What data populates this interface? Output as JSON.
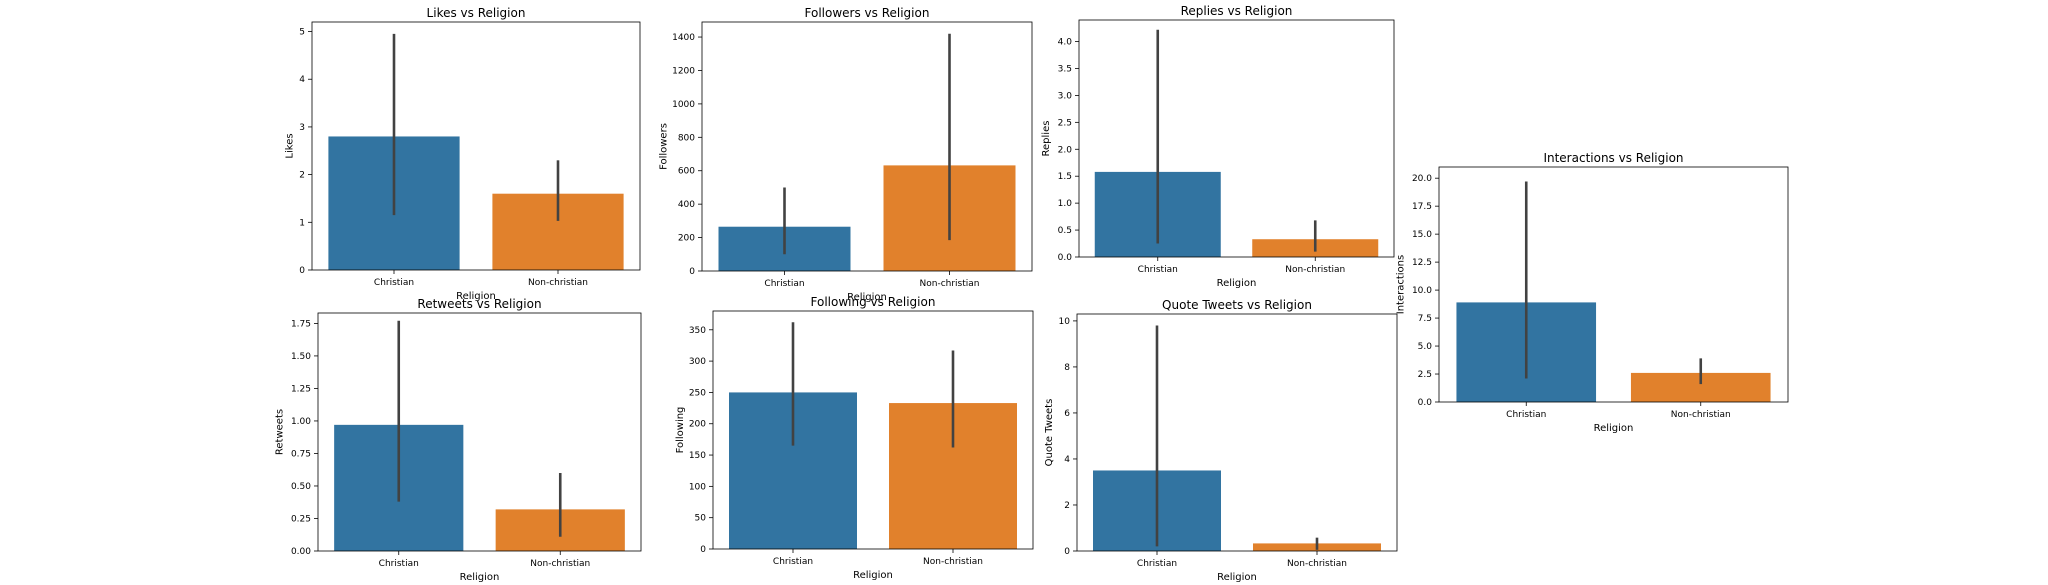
{
  "chart_data": [
    {
      "type": "bar",
      "title": "Likes vs Religion",
      "xlabel": "Religion",
      "ylabel": "Likes",
      "categories": [
        "Christian",
        "Non-christian"
      ],
      "values": [
        2.8,
        1.6
      ],
      "error_low": [
        1.15,
        1.03
      ],
      "error_high": [
        4.95,
        2.3
      ],
      "ylim": [
        0,
        5.2
      ],
      "yticks": [
        0,
        1,
        2,
        3,
        4,
        5
      ],
      "ytick_labels": [
        "0",
        "1",
        "2",
        "3",
        "4",
        "5"
      ],
      "colors": [
        "#3274a1",
        "#e1812c"
      ],
      "grid": false
    },
    {
      "type": "bar",
      "title": "Followers vs Religion",
      "xlabel": "Religion",
      "ylabel": "Followers",
      "categories": [
        "Christian",
        "Non-christian"
      ],
      "values": [
        265,
        632
      ],
      "error_low": [
        100,
        185
      ],
      "error_high": [
        500,
        1420
      ],
      "ylim": [
        0,
        1490
      ],
      "yticks": [
        0,
        200,
        400,
        600,
        800,
        1000,
        1200,
        1400
      ],
      "ytick_labels": [
        "0",
        "200",
        "400",
        "600",
        "800",
        "1000",
        "1200",
        "1400"
      ],
      "colors": [
        "#3274a1",
        "#e1812c"
      ],
      "grid": false
    },
    {
      "type": "bar",
      "title": "Replies vs Religion",
      "xlabel": "Religion",
      "ylabel": "Replies",
      "categories": [
        "Christian",
        "Non-christian"
      ],
      "values": [
        1.58,
        0.33
      ],
      "error_low": [
        0.25,
        0.1
      ],
      "error_high": [
        4.22,
        0.68
      ],
      "ylim": [
        0,
        4.4
      ],
      "yticks": [
        0,
        0.5,
        1,
        1.5,
        2,
        2.5,
        3,
        3.5,
        4
      ],
      "ytick_labels": [
        "0.0",
        "0.5",
        "1.0",
        "1.5",
        "2.0",
        "2.5",
        "3.0",
        "3.5",
        "4.0"
      ],
      "colors": [
        "#3274a1",
        "#e1812c"
      ],
      "grid": false
    },
    {
      "type": "bar",
      "title": "Interactions vs Religion",
      "xlabel": "Religion",
      "ylabel": "Interactions",
      "categories": [
        "Christian",
        "Non-christian"
      ],
      "values": [
        8.9,
        2.6
      ],
      "error_low": [
        2.1,
        1.6
      ],
      "error_high": [
        19.7,
        3.9
      ],
      "ylim": [
        0,
        21
      ],
      "yticks": [
        0,
        2.5,
        5,
        7.5,
        10,
        12.5,
        15,
        17.5,
        20
      ],
      "ytick_labels": [
        "0.0",
        "2.5",
        "5.0",
        "7.5",
        "10.0",
        "12.5",
        "15.0",
        "17.5",
        "20.0"
      ],
      "colors": [
        "#3274a1",
        "#e1812c"
      ],
      "grid": false
    },
    {
      "type": "bar",
      "title": "Retweets vs Religion",
      "xlabel": "Religion",
      "ylabel": "Retweets",
      "categories": [
        "Christian",
        "Non-christian"
      ],
      "values": [
        0.97,
        0.32
      ],
      "error_low": [
        0.38,
        0.11
      ],
      "error_high": [
        1.77,
        0.6
      ],
      "ylim": [
        0,
        1.83
      ],
      "yticks": [
        0,
        0.25,
        0.5,
        0.75,
        1,
        1.25,
        1.5,
        1.75
      ],
      "ytick_labels": [
        "0.00",
        "0.25",
        "0.50",
        "0.75",
        "1.00",
        "1.25",
        "1.50",
        "1.75"
      ],
      "colors": [
        "#3274a1",
        "#e1812c"
      ],
      "grid": false
    },
    {
      "type": "bar",
      "title": "Following vs Religion",
      "xlabel": "Religion",
      "ylabel": "Following",
      "categories": [
        "Christian",
        "Non-christian"
      ],
      "values": [
        250,
        233
      ],
      "error_low": [
        165,
        162
      ],
      "error_high": [
        362,
        317
      ],
      "ylim": [
        0,
        380
      ],
      "yticks": [
        0,
        50,
        100,
        150,
        200,
        250,
        300,
        350
      ],
      "ytick_labels": [
        "0",
        "50",
        "100",
        "150",
        "200",
        "250",
        "300",
        "350"
      ],
      "colors": [
        "#3274a1",
        "#e1812c"
      ],
      "grid": false
    },
    {
      "type": "bar",
      "title": "Quote Tweets vs Religion",
      "xlabel": "Religion",
      "ylabel": "Quote Tweets",
      "categories": [
        "Christian",
        "Non-christian"
      ],
      "values": [
        3.5,
        0.33
      ],
      "error_low": [
        0.2,
        0.05
      ],
      "error_high": [
        9.8,
        0.58
      ],
      "ylim": [
        0,
        10.3
      ],
      "yticks": [
        0,
        2,
        4,
        6,
        8,
        10
      ],
      "ytick_labels": [
        "0",
        "2",
        "4",
        "6",
        "8",
        "10"
      ],
      "colors": [
        "#3274a1",
        "#e1812c"
      ],
      "grid": false
    }
  ]
}
